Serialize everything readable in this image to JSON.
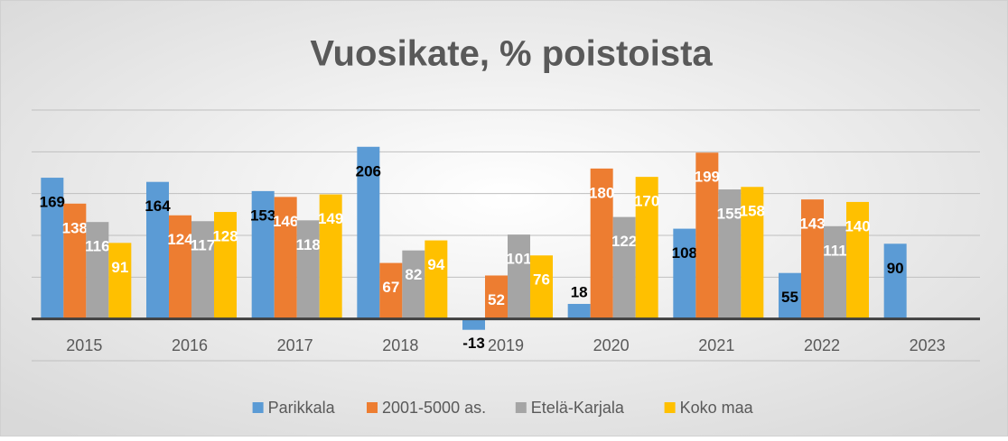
{
  "chart_data": {
    "type": "bar",
    "title": "Vuosikate, % poistoista",
    "categories": [
      "2015",
      "2016",
      "2017",
      "2018",
      "2019",
      "2020",
      "2021",
      "2022",
      "2023"
    ],
    "series": [
      {
        "name": "Parikkala",
        "color": "#5b9bd5",
        "values": [
          169,
          164,
          153,
          206,
          -13,
          18,
          108,
          55,
          90
        ]
      },
      {
        "name": "2001-5000 as.",
        "color": "#ed7d31",
        "values": [
          138,
          124,
          146,
          67,
          52,
          180,
          199,
          143,
          null
        ]
      },
      {
        "name": "Etelä-Karjala",
        "color": "#a5a5a5",
        "values": [
          116,
          117,
          118,
          82,
          101,
          122,
          155,
          111,
          null
        ]
      },
      {
        "name": "Koko maa",
        "color": "#ffc000",
        "values": [
          91,
          128,
          149,
          94,
          76,
          170,
          158,
          140,
          null
        ]
      }
    ],
    "ylim": [
      -50,
      250
    ],
    "yticks": [
      -50,
      0,
      50,
      100,
      150,
      200,
      250
    ],
    "grid": true,
    "legend": "bottom"
  }
}
